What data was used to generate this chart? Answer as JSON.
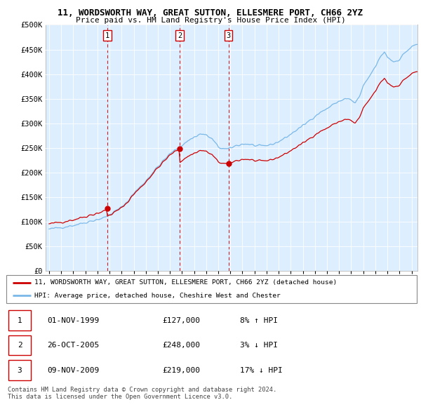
{
  "title": "11, WORDSWORTH WAY, GREAT SUTTON, ELLESMERE PORT, CH66 2YZ",
  "subtitle": "Price paid vs. HM Land Registry's House Price Index (HPI)",
  "legend_line1": "11, WORDSWORTH WAY, GREAT SUTTON, ELLESMERE PORT, CH66 2YZ (detached house)",
  "legend_line2": "HPI: Average price, detached house, Cheshire West and Chester",
  "footer1": "Contains HM Land Registry data © Crown copyright and database right 2024.",
  "footer2": "This data is licensed under the Open Government Licence v3.0.",
  "table": [
    {
      "num": "1",
      "date": "01-NOV-1999",
      "price": "£127,000",
      "hpi": "8% ↑ HPI"
    },
    {
      "num": "2",
      "date": "26-OCT-2005",
      "price": "£248,000",
      "hpi": "3% ↓ HPI"
    },
    {
      "num": "3",
      "date": "09-NOV-2009",
      "price": "£219,000",
      "hpi": "17% ↓ HPI"
    }
  ],
  "sale_years": [
    1999.83,
    2005.81,
    2009.84
  ],
  "sale_values": [
    127000,
    248000,
    219000
  ],
  "hpi_color": "#7ab8e8",
  "price_color": "#cc0000",
  "vline_color": "#cc0000",
  "chart_bg": "#ddeeff",
  "ylim": [
    0,
    500000
  ],
  "yticks": [
    0,
    50000,
    100000,
    150000,
    200000,
    250000,
    300000,
    350000,
    400000,
    450000,
    500000
  ],
  "ytick_labels": [
    "£0",
    "£50K",
    "£100K",
    "£150K",
    "£200K",
    "£250K",
    "£300K",
    "£350K",
    "£400K",
    "£450K",
    "£500K"
  ],
  "xlim_start": 1994.7,
  "xlim_end": 2025.5,
  "xtick_years": [
    1995,
    1996,
    1997,
    1998,
    1999,
    2000,
    2001,
    2002,
    2003,
    2004,
    2005,
    2006,
    2007,
    2008,
    2009,
    2010,
    2011,
    2012,
    2013,
    2014,
    2015,
    2016,
    2017,
    2018,
    2019,
    2020,
    2021,
    2022,
    2023,
    2024,
    2025
  ]
}
